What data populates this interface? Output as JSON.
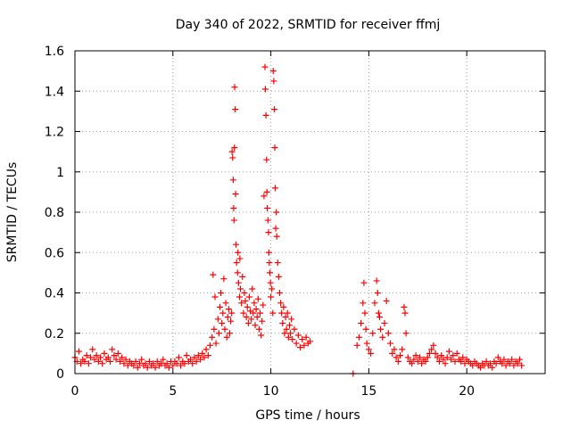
{
  "chart_data": {
    "type": "scatter",
    "title": "Day 340 of 2022, SRMTID for receiver ffmj",
    "xlabel": "GPS time / hours",
    "ylabel": "SRMTID / TECUs",
    "xlim": [
      0,
      24
    ],
    "ylim": [
      0,
      1.6
    ],
    "x_ticks": [
      0,
      5,
      10,
      15,
      20
    ],
    "x_tick_labels": [
      "0",
      "5",
      "10",
      "15",
      "20"
    ],
    "y_ticks": [
      0,
      0.2,
      0.4,
      0.6,
      0.8,
      1.0,
      1.2,
      1.4,
      1.6
    ],
    "y_tick_labels": [
      "0",
      "0.2",
      "0.4",
      "0.6",
      "0.8",
      "1",
      "1.2",
      "1.4",
      "1.6"
    ],
    "grid": true,
    "marker": "+",
    "color": "#ff0000",
    "series": [
      {
        "name": "SRMTID",
        "points": [
          [
            0.0,
            0.08
          ],
          [
            0.1,
            0.06
          ],
          [
            0.2,
            0.11
          ],
          [
            0.3,
            0.05
          ],
          [
            0.4,
            0.07
          ],
          [
            0.5,
            0.06
          ],
          [
            0.6,
            0.09
          ],
          [
            0.7,
            0.05
          ],
          [
            0.8,
            0.08
          ],
          [
            0.9,
            0.12
          ],
          [
            1.0,
            0.07
          ],
          [
            1.1,
            0.09
          ],
          [
            1.2,
            0.06
          ],
          [
            1.3,
            0.08
          ],
          [
            1.4,
            0.05
          ],
          [
            1.5,
            0.1
          ],
          [
            1.6,
            0.07
          ],
          [
            1.7,
            0.08
          ],
          [
            1.8,
            0.06
          ],
          [
            1.9,
            0.12
          ],
          [
            2.0,
            0.09
          ],
          [
            2.1,
            0.07
          ],
          [
            2.2,
            0.1
          ],
          [
            2.3,
            0.06
          ],
          [
            2.4,
            0.08
          ],
          [
            2.5,
            0.05
          ],
          [
            2.6,
            0.07
          ],
          [
            2.7,
            0.04
          ],
          [
            2.8,
            0.06
          ],
          [
            2.9,
            0.05
          ],
          [
            3.0,
            0.04
          ],
          [
            3.1,
            0.06
          ],
          [
            3.2,
            0.03
          ],
          [
            3.3,
            0.05
          ],
          [
            3.4,
            0.07
          ],
          [
            3.5,
            0.04
          ],
          [
            3.6,
            0.05
          ],
          [
            3.7,
            0.03
          ],
          [
            3.8,
            0.06
          ],
          [
            3.9,
            0.04
          ],
          [
            4.0,
            0.05
          ],
          [
            4.1,
            0.03
          ],
          [
            4.2,
            0.06
          ],
          [
            4.3,
            0.04
          ],
          [
            4.4,
            0.05
          ],
          [
            4.5,
            0.07
          ],
          [
            4.6,
            0.04
          ],
          [
            4.7,
            0.05
          ],
          [
            4.8,
            0.03
          ],
          [
            4.9,
            0.06
          ],
          [
            5.0,
            0.04
          ],
          [
            5.1,
            0.06
          ],
          [
            5.2,
            0.05
          ],
          [
            5.3,
            0.08
          ],
          [
            5.4,
            0.04
          ],
          [
            5.5,
            0.06
          ],
          [
            5.6,
            0.05
          ],
          [
            5.7,
            0.09
          ],
          [
            5.8,
            0.06
          ],
          [
            5.9,
            0.07
          ],
          [
            6.0,
            0.05
          ],
          [
            6.1,
            0.08
          ],
          [
            6.2,
            0.06
          ],
          [
            6.3,
            0.09
          ],
          [
            6.4,
            0.07
          ],
          [
            6.5,
            0.1
          ],
          [
            6.6,
            0.08
          ],
          [
            6.7,
            0.12
          ],
          [
            6.8,
            0.09
          ],
          [
            6.9,
            0.14
          ],
          [
            7.0,
            0.18
          ],
          [
            7.05,
            0.49
          ],
          [
            7.1,
            0.22
          ],
          [
            7.15,
            0.38
          ],
          [
            7.2,
            0.15
          ],
          [
            7.3,
            0.27
          ],
          [
            7.35,
            0.2
          ],
          [
            7.4,
            0.33
          ],
          [
            7.45,
            0.4
          ],
          [
            7.5,
            0.25
          ],
          [
            7.55,
            0.3
          ],
          [
            7.6,
            0.47
          ],
          [
            7.65,
            0.22
          ],
          [
            7.7,
            0.35
          ],
          [
            7.75,
            0.18
          ],
          [
            7.8,
            0.28
          ],
          [
            7.85,
            0.32
          ],
          [
            7.9,
            0.2
          ],
          [
            7.95,
            0.26
          ],
          [
            8.0,
            0.3
          ],
          [
            8.02,
            1.1
          ],
          [
            8.05,
            1.07
          ],
          [
            8.08,
            0.96
          ],
          [
            8.1,
            0.82
          ],
          [
            8.12,
            0.76
          ],
          [
            8.14,
            1.12
          ],
          [
            8.15,
            1.42
          ],
          [
            8.18,
            1.31
          ],
          [
            8.2,
            0.89
          ],
          [
            8.22,
            0.64
          ],
          [
            8.25,
            0.55
          ],
          [
            8.3,
            0.5
          ],
          [
            8.32,
            0.6
          ],
          [
            8.35,
            0.45
          ],
          [
            8.4,
            0.38
          ],
          [
            8.42,
            0.57
          ],
          [
            8.45,
            0.42
          ],
          [
            8.5,
            0.35
          ],
          [
            8.55,
            0.48
          ],
          [
            8.6,
            0.3
          ],
          [
            8.65,
            0.4
          ],
          [
            8.7,
            0.36
          ],
          [
            8.75,
            0.28
          ],
          [
            8.8,
            0.33
          ],
          [
            8.85,
            0.25
          ],
          [
            8.9,
            0.38
          ],
          [
            8.95,
            0.31
          ],
          [
            9.0,
            0.27
          ],
          [
            9.05,
            0.42
          ],
          [
            9.1,
            0.3
          ],
          [
            9.15,
            0.35
          ],
          [
            9.2,
            0.24
          ],
          [
            9.25,
            0.32
          ],
          [
            9.3,
            0.28
          ],
          [
            9.35,
            0.37
          ],
          [
            9.4,
            0.22
          ],
          [
            9.45,
            0.3
          ],
          [
            9.5,
            0.19
          ],
          [
            9.55,
            0.26
          ],
          [
            9.6,
            0.34
          ],
          [
            9.65,
            0.88
          ],
          [
            9.7,
            1.52
          ],
          [
            9.72,
            1.41
          ],
          [
            9.75,
            1.28
          ],
          [
            9.78,
            1.06
          ],
          [
            9.8,
            0.9
          ],
          [
            9.82,
            0.82
          ],
          [
            9.85,
            0.76
          ],
          [
            9.88,
            0.7
          ],
          [
            9.9,
            0.6
          ],
          [
            9.92,
            0.55
          ],
          [
            9.95,
            0.5
          ],
          [
            9.98,
            0.45
          ],
          [
            10.0,
            0.38
          ],
          [
            10.05,
            0.42
          ],
          [
            10.1,
            0.3
          ],
          [
            10.12,
            1.5
          ],
          [
            10.15,
            1.45
          ],
          [
            10.18,
            1.31
          ],
          [
            10.2,
            1.12
          ],
          [
            10.22,
            0.92
          ],
          [
            10.25,
            0.72
          ],
          [
            10.28,
            0.8
          ],
          [
            10.3,
            0.68
          ],
          [
            10.35,
            0.55
          ],
          [
            10.4,
            0.48
          ],
          [
            10.45,
            0.4
          ],
          [
            10.5,
            0.35
          ],
          [
            10.55,
            0.3
          ],
          [
            10.6,
            0.25
          ],
          [
            10.65,
            0.33
          ],
          [
            10.7,
            0.2
          ],
          [
            10.75,
            0.28
          ],
          [
            10.8,
            0.22
          ],
          [
            10.85,
            0.3
          ],
          [
            10.9,
            0.18
          ],
          [
            10.95,
            0.24
          ],
          [
            11.0,
            0.2
          ],
          [
            11.05,
            0.27
          ],
          [
            11.1,
            0.17
          ],
          [
            11.2,
            0.22
          ],
          [
            11.3,
            0.15
          ],
          [
            11.4,
            0.19
          ],
          [
            11.5,
            0.13
          ],
          [
            11.6,
            0.17
          ],
          [
            11.7,
            0.14
          ],
          [
            11.8,
            0.18
          ],
          [
            11.9,
            0.15
          ],
          [
            12.0,
            0.16
          ],
          [
            14.2,
            0.0
          ],
          [
            14.4,
            0.14
          ],
          [
            14.5,
            0.18
          ],
          [
            14.6,
            0.25
          ],
          [
            14.7,
            0.35
          ],
          [
            14.75,
            0.45
          ],
          [
            14.8,
            0.3
          ],
          [
            14.85,
            0.22
          ],
          [
            14.9,
            0.15
          ],
          [
            15.0,
            0.12
          ],
          [
            15.1,
            0.1
          ],
          [
            15.2,
            0.2
          ],
          [
            15.3,
            0.35
          ],
          [
            15.4,
            0.46
          ],
          [
            15.45,
            0.4
          ],
          [
            15.5,
            0.3
          ],
          [
            15.55,
            0.28
          ],
          [
            15.6,
            0.22
          ],
          [
            15.7,
            0.18
          ],
          [
            15.8,
            0.25
          ],
          [
            15.9,
            0.36
          ],
          [
            16.0,
            0.2
          ],
          [
            16.1,
            0.15
          ],
          [
            16.2,
            0.1
          ],
          [
            16.3,
            0.12
          ],
          [
            16.4,
            0.08
          ],
          [
            16.5,
            0.06
          ],
          [
            16.6,
            0.09
          ],
          [
            16.7,
            0.12
          ],
          [
            16.8,
            0.33
          ],
          [
            16.85,
            0.3
          ],
          [
            16.9,
            0.2
          ],
          [
            17.0,
            0.08
          ],
          [
            17.1,
            0.06
          ],
          [
            17.2,
            0.05
          ],
          [
            17.3,
            0.07
          ],
          [
            17.4,
            0.09
          ],
          [
            17.5,
            0.06
          ],
          [
            17.6,
            0.08
          ],
          [
            17.7,
            0.05
          ],
          [
            17.8,
            0.07
          ],
          [
            17.9,
            0.06
          ],
          [
            18.0,
            0.08
          ],
          [
            18.1,
            0.1
          ],
          [
            18.2,
            0.12
          ],
          [
            18.3,
            0.14
          ],
          [
            18.4,
            0.1
          ],
          [
            18.5,
            0.08
          ],
          [
            18.6,
            0.06
          ],
          [
            18.7,
            0.09
          ],
          [
            18.8,
            0.07
          ],
          [
            18.9,
            0.05
          ],
          [
            19.0,
            0.08
          ],
          [
            19.1,
            0.11
          ],
          [
            19.2,
            0.07
          ],
          [
            19.3,
            0.09
          ],
          [
            19.4,
            0.06
          ],
          [
            19.5,
            0.1
          ],
          [
            19.6,
            0.07
          ],
          [
            19.7,
            0.06
          ],
          [
            19.8,
            0.08
          ],
          [
            19.9,
            0.05
          ],
          [
            20.0,
            0.07
          ],
          [
            20.1,
            0.06
          ],
          [
            20.2,
            0.05
          ],
          [
            20.3,
            0.04
          ],
          [
            20.4,
            0.06
          ],
          [
            20.5,
            0.05
          ],
          [
            20.6,
            0.04
          ],
          [
            20.7,
            0.03
          ],
          [
            20.8,
            0.05
          ],
          [
            20.9,
            0.04
          ],
          [
            21.0,
            0.06
          ],
          [
            21.1,
            0.04
          ],
          [
            21.2,
            0.05
          ],
          [
            21.3,
            0.03
          ],
          [
            21.4,
            0.06
          ],
          [
            21.5,
            0.05
          ],
          [
            21.6,
            0.08
          ],
          [
            21.7,
            0.06
          ],
          [
            21.8,
            0.05
          ],
          [
            21.9,
            0.07
          ],
          [
            22.0,
            0.04
          ],
          [
            22.1,
            0.06
          ],
          [
            22.2,
            0.05
          ],
          [
            22.3,
            0.07
          ],
          [
            22.4,
            0.04
          ],
          [
            22.5,
            0.06
          ],
          [
            22.6,
            0.05
          ],
          [
            22.7,
            0.07
          ],
          [
            22.8,
            0.04
          ]
        ]
      }
    ]
  }
}
